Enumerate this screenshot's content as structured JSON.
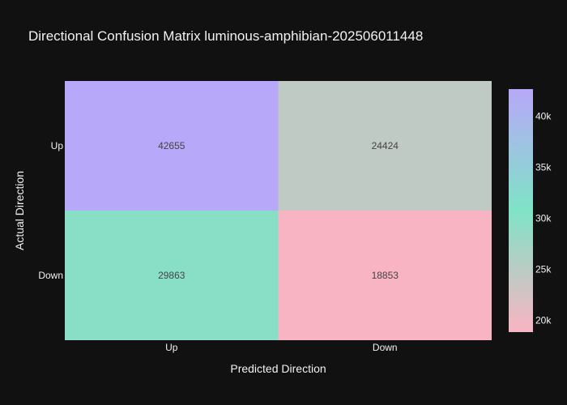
{
  "chart_data": {
    "type": "heatmap",
    "title": "Directional Confusion Matrix luminous-amphibian-202506011448",
    "xlabel": "Predicted Direction",
    "ylabel": "Actual Direction",
    "x_categories": [
      "Up",
      "Down"
    ],
    "y_categories": [
      "Up",
      "Down"
    ],
    "values": [
      [
        42655,
        24424
      ],
      [
        29863,
        18853
      ]
    ],
    "colorscale": [
      [
        0.0,
        "#f9b4c3"
      ],
      [
        0.5,
        "#7fe3c6"
      ],
      [
        1.0,
        "#b8a8f9"
      ]
    ],
    "zmin": 18853,
    "zmax": 42655,
    "colorbar": {
      "ticks": [
        20000,
        25000,
        30000,
        35000,
        40000
      ],
      "tick_labels": [
        "20k",
        "25k",
        "30k",
        "35k",
        "40k"
      ]
    }
  }
}
